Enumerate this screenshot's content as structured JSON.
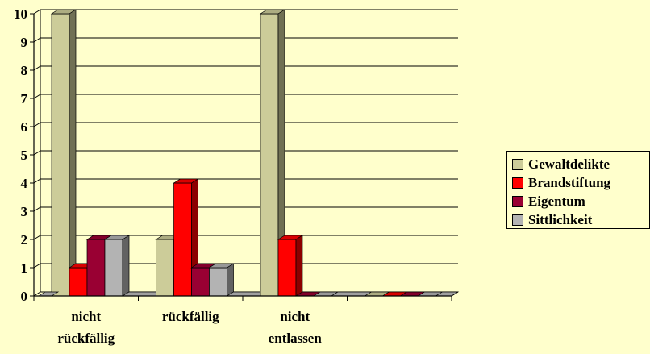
{
  "chart_data": {
    "type": "bar",
    "categories": [
      [
        "nicht",
        "rückfällig"
      ],
      [
        "rückfällig"
      ],
      [
        "nicht",
        "entlassen"
      ],
      []
    ],
    "series": [
      {
        "name": "Gewaltdelikte",
        "color": "#cccc99",
        "values": [
          10,
          2,
          10,
          0
        ]
      },
      {
        "name": "Brandstiftung",
        "color": "#ff0000",
        "values": [
          1,
          4,
          2,
          0
        ]
      },
      {
        "name": "Eigentum",
        "color": "#990033",
        "values": [
          2,
          1,
          0,
          0
        ]
      },
      {
        "name": "Sittlichkeit",
        "color": "#b3b3b3",
        "values": [
          2,
          1,
          0,
          0
        ]
      }
    ],
    "y_ticks": [
      "0",
      "1",
      "2",
      "3",
      "4",
      "5",
      "6",
      "7",
      "8",
      "9",
      "10"
    ],
    "ylim": [
      0,
      10
    ],
    "grid": true,
    "style": "3d-column",
    "legend_position": "right"
  }
}
